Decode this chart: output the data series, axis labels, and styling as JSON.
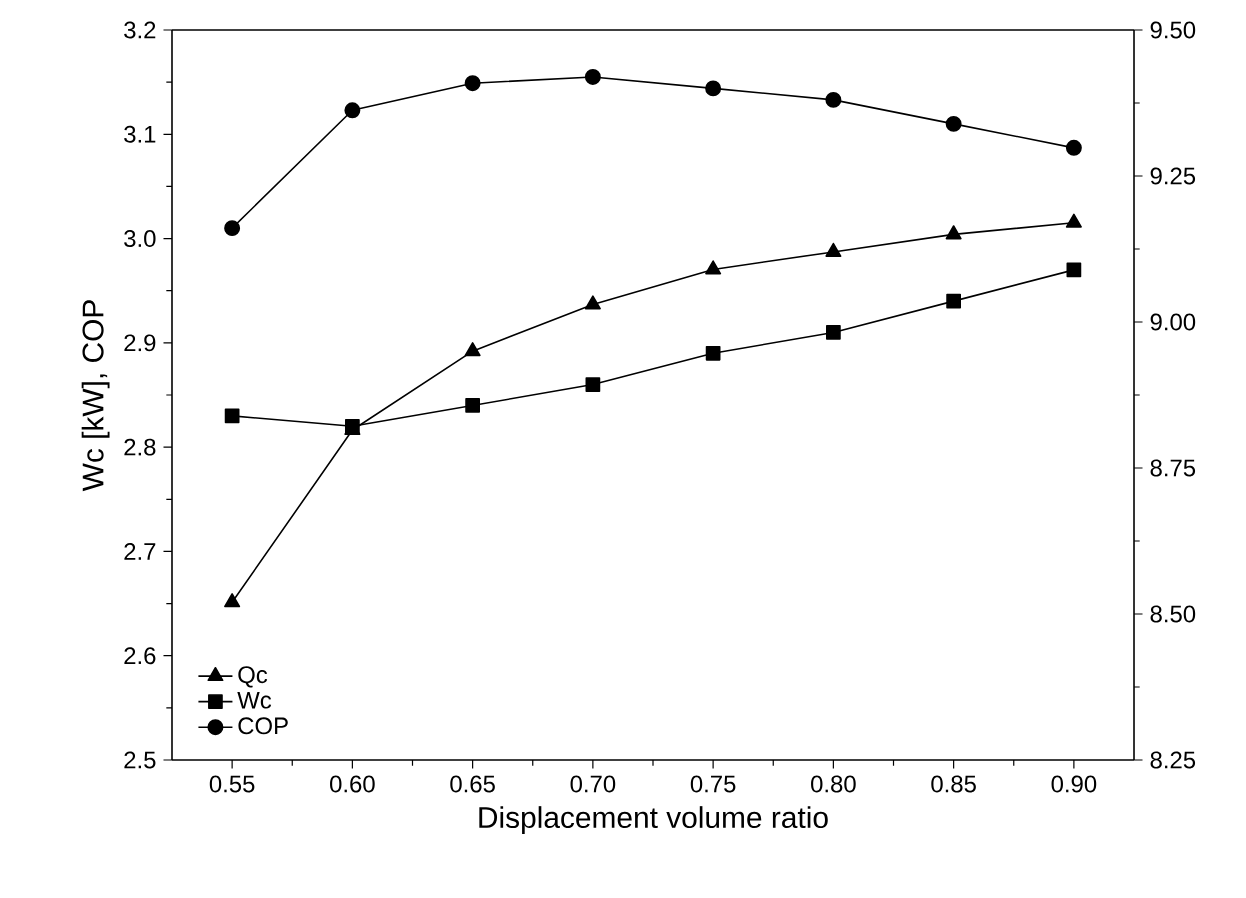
{
  "chart_data": {
    "type": "line",
    "xlabel": "Displacement volume ratio",
    "ylabel": "Wc [kW], COP",
    "x": [
      0.55,
      0.6,
      0.65,
      0.7,
      0.75,
      0.8,
      0.85,
      0.9
    ],
    "xlim": [
      0.525,
      0.925
    ],
    "xticks": [
      {
        "value": 0.55,
        "label": "0.55"
      },
      {
        "value": 0.6,
        "label": "0.60"
      },
      {
        "value": 0.65,
        "label": "0.65"
      },
      {
        "value": 0.7,
        "label": "0.70"
      },
      {
        "value": 0.75,
        "label": "0.75"
      },
      {
        "value": 0.8,
        "label": "0.80"
      },
      {
        "value": 0.85,
        "label": "0.85"
      },
      {
        "value": 0.9,
        "label": "0.90"
      }
    ],
    "ylim": [
      2.5,
      3.2
    ],
    "yticks": [
      {
        "value": 2.5,
        "label": "2.5"
      },
      {
        "value": 2.6,
        "label": "2.6"
      },
      {
        "value": 2.7,
        "label": "2.7"
      },
      {
        "value": 2.8,
        "label": "2.8"
      },
      {
        "value": 2.9,
        "label": "2.9"
      },
      {
        "value": 3.0,
        "label": "3.0"
      },
      {
        "value": 3.1,
        "label": "3.1"
      },
      {
        "value": 3.2,
        "label": "3.2"
      }
    ],
    "y2lim": [
      8.25,
      9.5
    ],
    "y2ticks": [
      {
        "value": 8.25,
        "label": "8.25"
      },
      {
        "value": 8.5,
        "label": "8.50"
      },
      {
        "value": 8.75,
        "label": "8.75"
      },
      {
        "value": 9.0,
        "label": "9.00"
      },
      {
        "value": 9.25,
        "label": "9.25"
      },
      {
        "value": 9.5,
        "label": "9.50"
      }
    ],
    "legend": "bottom left",
    "grid": false,
    "series": [
      {
        "name": "Qc",
        "color": "#000000",
        "axis": "y2",
        "marker": "triangle",
        "values": [
          8.52,
          8.815,
          8.95,
          9.03,
          9.09,
          9.12,
          9.15,
          9.17
        ]
      },
      {
        "name": "Wc",
        "color": "#000000",
        "marker": "square",
        "values": [
          2.83,
          2.82,
          2.84,
          2.86,
          2.89,
          2.91,
          2.94,
          2.97
        ]
      },
      {
        "name": "COP",
        "color": "#000000",
        "marker": "circle",
        "values": [
          3.01,
          3.123,
          3.149,
          3.155,
          3.144,
          3.133,
          3.11,
          3.087
        ]
      }
    ]
  }
}
